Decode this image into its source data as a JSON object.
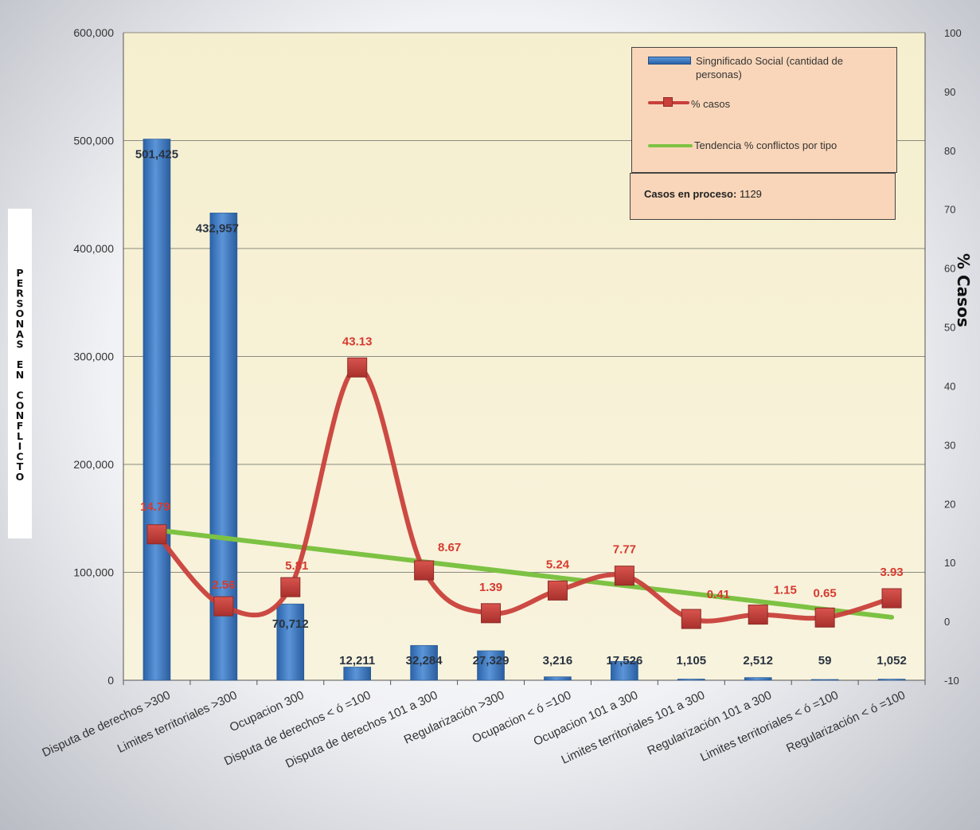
{
  "chart_data": {
    "type": "bar",
    "categories": [
      "Disputa de derechos >300",
      "Limites territoriales >300",
      "Ocupacion 300",
      "Disputa de derechos < ó =100",
      "Disputa de derechos 101 a 300",
      "Regularización >300",
      "Ocupacion < ó =100",
      "Ocupacion 101 a 300",
      "Limites territoriales 101 a 300",
      "Regularización 101 a 300",
      "Limites territoriales < ó =100",
      "Regularización < ó =100"
    ],
    "series": [
      {
        "name": "Singnificado Social (cantidad de personas)",
        "type": "bar",
        "axis": "left",
        "values": [
          501425,
          432957,
          70712,
          12211,
          32284,
          27329,
          3216,
          17526,
          1105,
          2512,
          59,
          1052
        ],
        "labels": [
          "501,425",
          "432,957",
          "70,712",
          "12,211",
          "32,284",
          "27,329",
          "3,216",
          "17,526",
          "1,105",
          "2,512",
          "59",
          "1,052"
        ],
        "color": "#3a76c2"
      },
      {
        "name": "% casos",
        "type": "line",
        "axis": "right",
        "values": [
          14.79,
          2.56,
          5.81,
          43.13,
          8.67,
          1.39,
          5.24,
          7.77,
          0.41,
          1.15,
          0.65,
          3.93
        ],
        "labels": [
          "14.79",
          "2.56",
          "5.81",
          "43.13",
          "8.67",
          "1.39",
          "5.24",
          "7.77",
          "0.41",
          "1.15",
          "0.65",
          "3.93"
        ],
        "color": "#c9403b"
      },
      {
        "name": "Tendencia % conflictos por tipo",
        "type": "trendline",
        "axis": "right",
        "start": 15.5,
        "end": 0.7,
        "color": "#7dc243"
      }
    ],
    "ylabel": "PERSONAS EN CONFLICTO",
    "y2label": "% Casos",
    "ylim": [
      0,
      600000
    ],
    "y2lim": [
      -10,
      100
    ],
    "yticks": [
      "0",
      "100,000",
      "200,000",
      "300,000",
      "400,000",
      "500,000",
      "600,000"
    ],
    "y2ticks": [
      "-10",
      "0",
      "10",
      "20",
      "30",
      "40",
      "50",
      "60",
      "70",
      "80",
      "90",
      "100"
    ],
    "grid": true,
    "legend_position": "top-right"
  },
  "note": {
    "label": "Casos  en proceso:",
    "value": "1129"
  },
  "colors": {
    "plot_bg_top": "#f7f1d6",
    "plot_bg_bottom": "#f7f1d6",
    "legend_bg": "#f9d6b9"
  }
}
